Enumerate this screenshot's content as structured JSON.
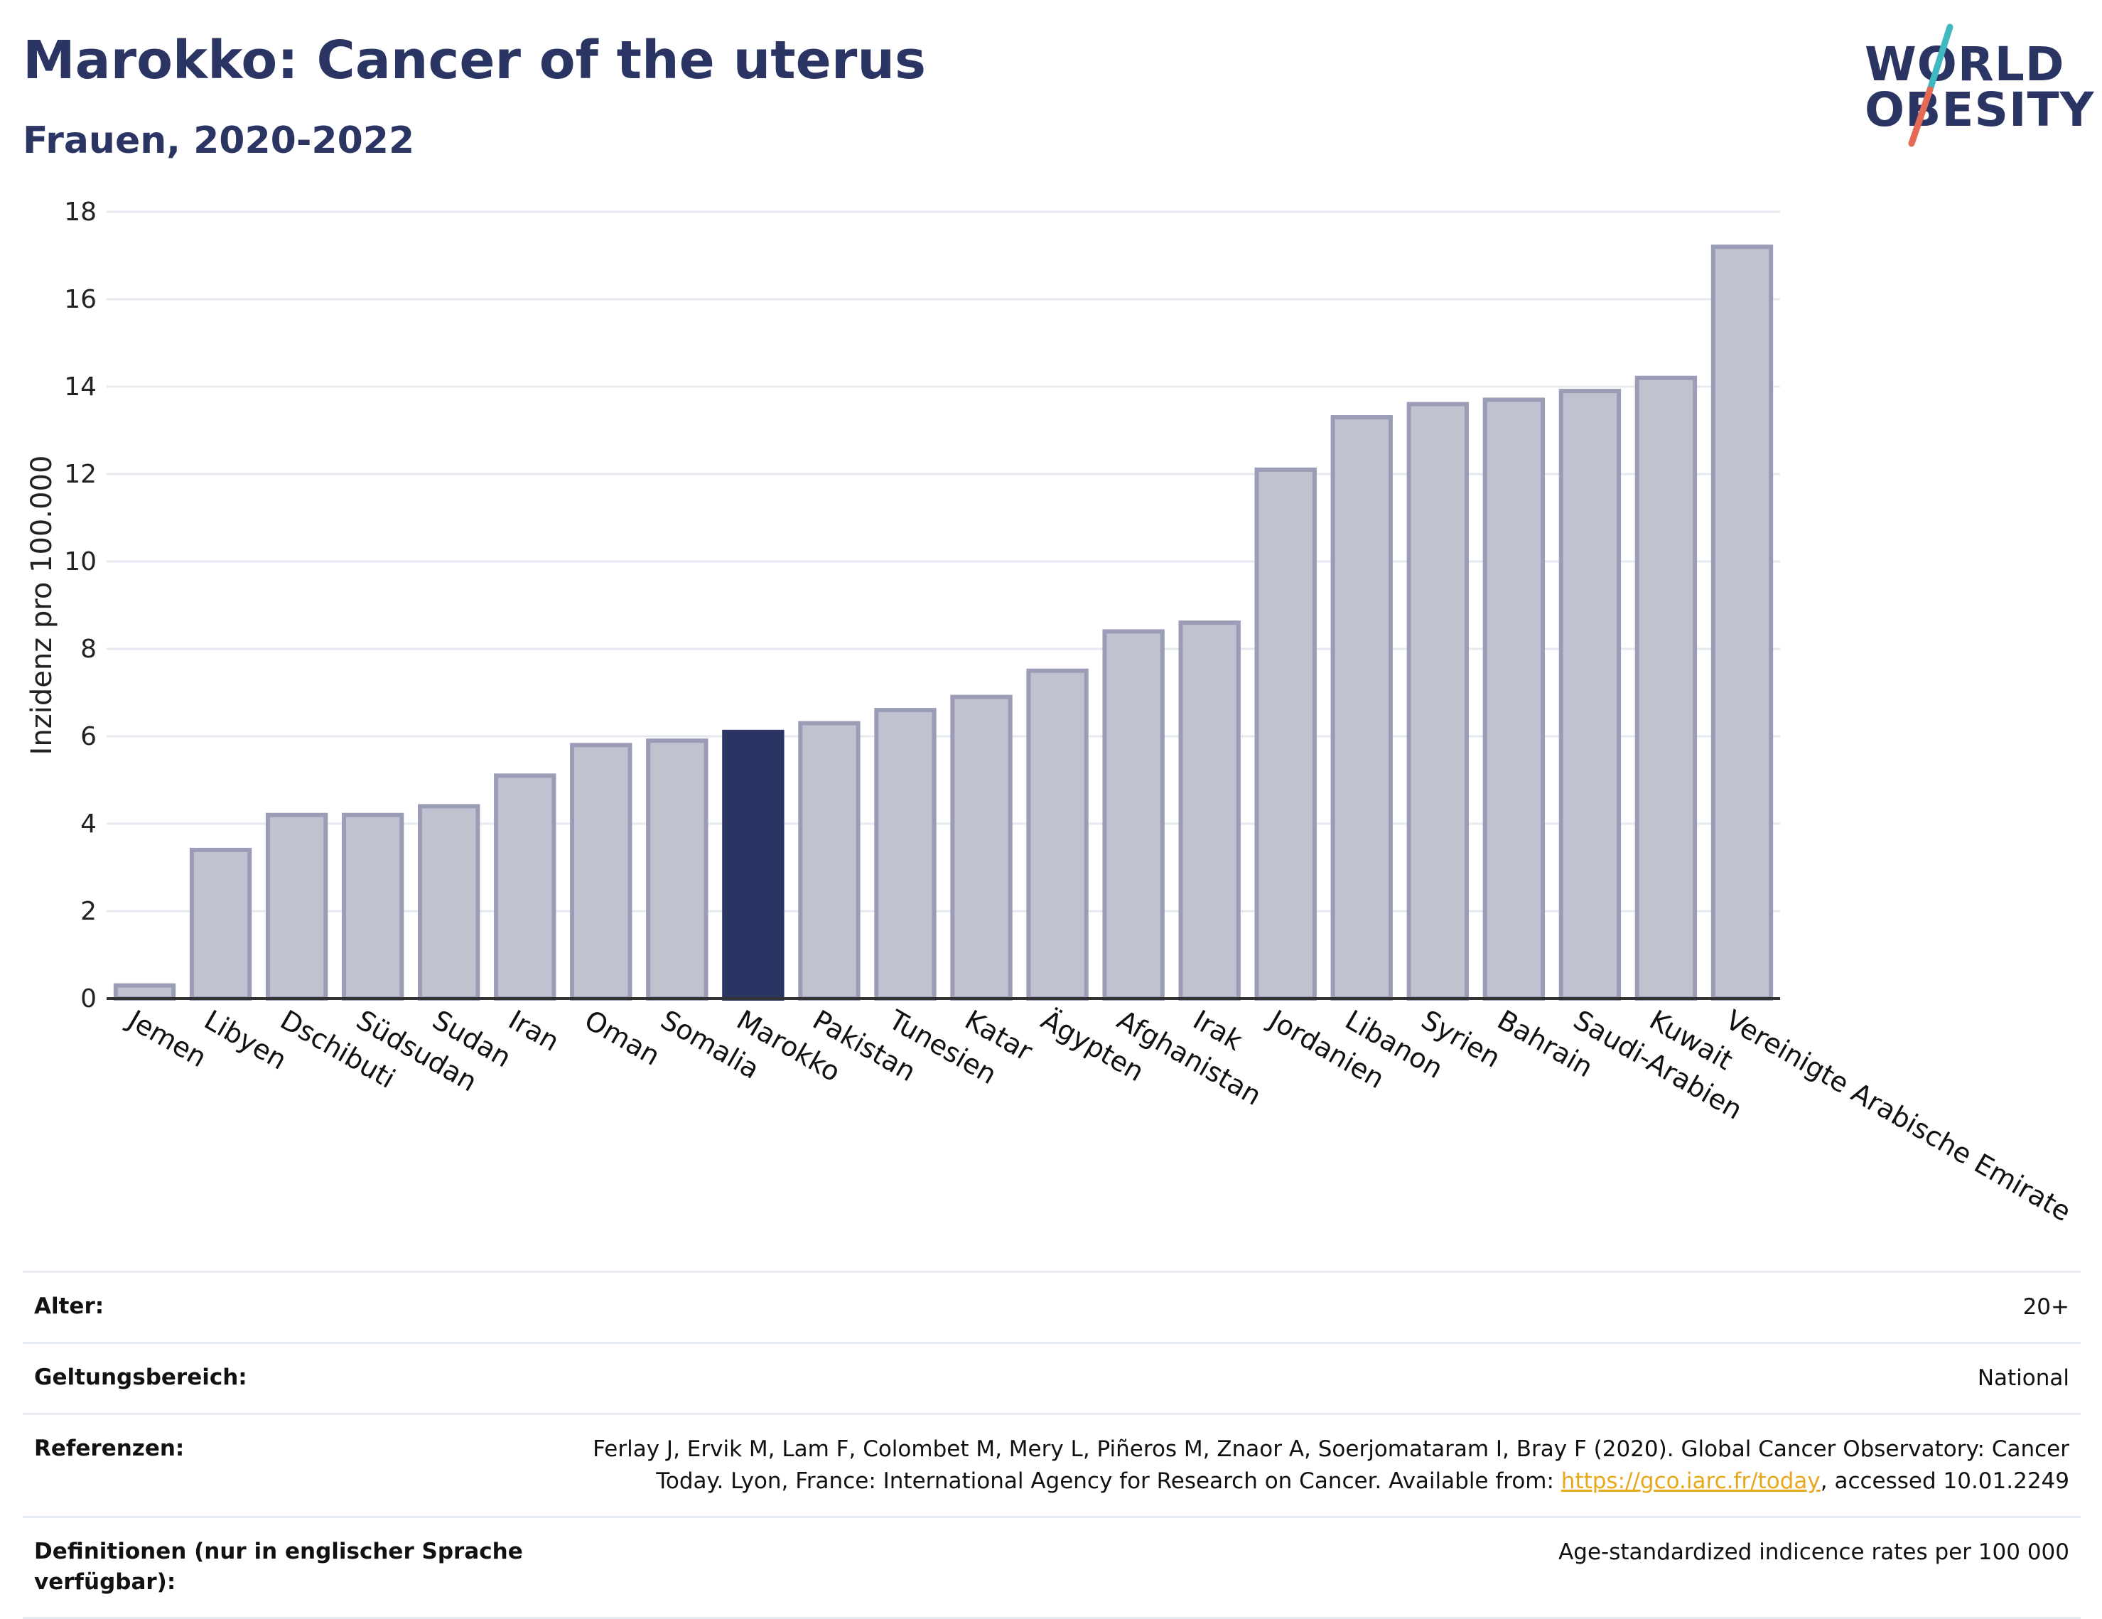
{
  "header": {
    "title": "Marokko: Cancer of the uterus",
    "subtitle": "Frauen, 2020-2022"
  },
  "logo": {
    "line1": "WORLD",
    "line2": "OBESITY"
  },
  "colors": {
    "bar": "#c0c2d0",
    "bar_border": "#9a9db5",
    "highlight": "#2b3563",
    "grid": "#e6e9ef",
    "axis": "#333333"
  },
  "chart_data": {
    "type": "bar",
    "ylabel": "Inzidenz pro 100.000",
    "ylim": [
      0,
      18
    ],
    "yticks": [
      0,
      2,
      4,
      6,
      8,
      10,
      12,
      14,
      16,
      18
    ],
    "ytick_labels": [
      "0",
      "2",
      "4",
      "6",
      "8",
      "10",
      "12",
      "14",
      "16",
      "18"
    ],
    "grid": true,
    "highlight_category": "Marokko",
    "categories": [
      "Jemen",
      "Libyen",
      "Dschibuti",
      "Südsudan",
      "Sudan",
      "Iran",
      "Oman",
      "Somalia",
      "Marokko",
      "Pakistan",
      "Tunesien",
      "Katar",
      "Ägypten",
      "Afghanistan",
      "Irak",
      "Jordanien",
      "Libanon",
      "Syrien",
      "Bahrain",
      "Saudi-Arabien",
      "Kuwait",
      "Vereinigte Arabische Emirate"
    ],
    "values": [
      0.3,
      3.4,
      4.2,
      4.2,
      4.4,
      5.1,
      5.8,
      5.9,
      6.1,
      6.3,
      6.6,
      6.9,
      7.5,
      8.4,
      8.6,
      12.1,
      13.3,
      13.6,
      13.7,
      13.9,
      14.2,
      17.2
    ]
  },
  "info": {
    "age_label": "Alter:",
    "age_value": "20+",
    "scope_label": "Geltungsbereich:",
    "scope_value": "National",
    "ref_label": "Referenzen:",
    "ref_text_1": "Ferlay J, Ervik M, Lam F, Colombet M, Mery L, Piñeros M, Znaor A, Soerjomataram I, Bray F (2020). Global Cancer Observatory: Cancer Today. Lyon, France: International Agency for Research on Cancer. Available from: ",
    "ref_link": "https://gco.iarc.fr/today",
    "ref_text_2": ", accessed 10.01.2249",
    "def_label": "Definitionen (nur in englischer Sprache verfügbar):",
    "def_value": "Age-standardized indicence rates per 100 000"
  }
}
